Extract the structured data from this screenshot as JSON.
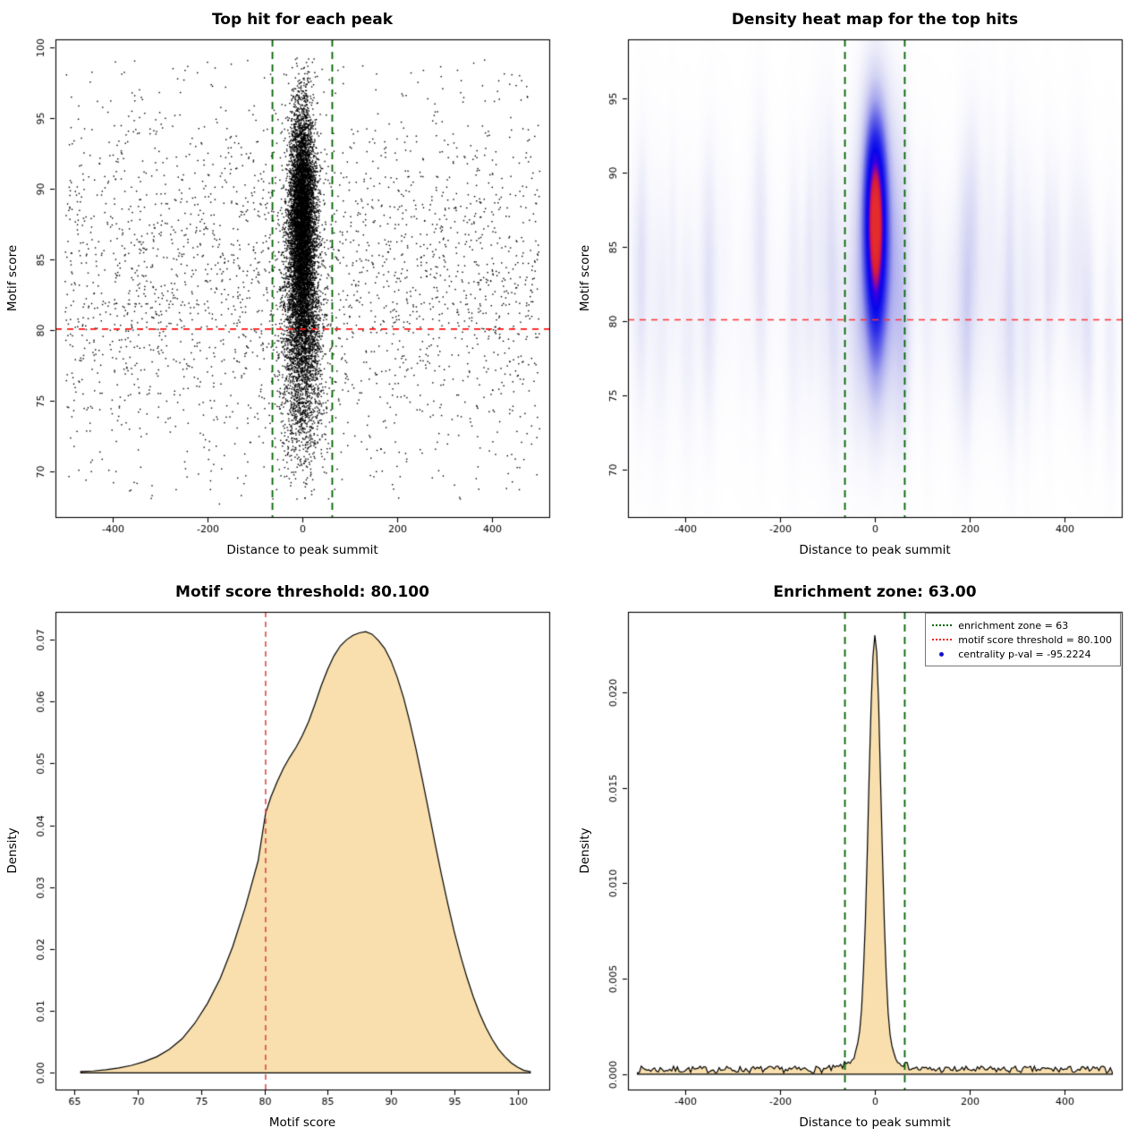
{
  "page": {
    "background": "#ffffff"
  },
  "chart_data": [
    {
      "type": "scatter",
      "title": "Top hit for each peak",
      "xlabel": "Distance to peak summit",
      "ylabel": "Motif score",
      "xlim": [
        -520,
        520
      ],
      "ylim": [
        66.8,
        100.6
      ],
      "xticks": [
        -400,
        -200,
        0,
        200,
        400
      ],
      "xtick_labels": [
        "-400",
        "-200",
        "0",
        "200",
        "400"
      ],
      "yticks": [
        70,
        75,
        80,
        85,
        90,
        95,
        100
      ],
      "ytick_labels": [
        "70",
        "75",
        "80",
        "85",
        "90",
        "95",
        "100"
      ],
      "point_color": "#000000",
      "ref_lines": [
        {
          "orient": "h",
          "at": 80.1,
          "color": "#ff1111",
          "dash": [
            7,
            6
          ],
          "width": 1.6,
          "meaning": "motif score threshold = 80.100"
        },
        {
          "orient": "v",
          "at": -63,
          "color": "#006400",
          "dash": [
            8,
            6
          ],
          "width": 1.8,
          "meaning": "enrichment zone lower bound = -63"
        },
        {
          "orient": "v",
          "at": 63,
          "color": "#006400",
          "dash": [
            8,
            6
          ],
          "width": 1.8,
          "meaning": "enrichment zone upper bound = 63"
        }
      ],
      "model": {
        "seed": 11,
        "groups": [
          {
            "n": 5200,
            "x": [
              "n",
              0,
              13
            ],
            "y": [
              "n",
              88.5,
              3.8
            ],
            "clip": [
              -80,
              80,
              70,
              99.3
            ]
          },
          {
            "n": 2600,
            "x": [
              "n",
              0,
              18
            ],
            "y": [
              "n",
              84,
              4.5
            ],
            "clip": [
              -90,
              90,
              69,
              99
            ]
          },
          {
            "n": 1400,
            "x": [
              "n",
              0,
              22
            ],
            "y": [
              "n",
              79,
              3.2
            ],
            "clip": [
              -100,
              100,
              68.5,
              97
            ]
          },
          {
            "n": 350,
            "x": [
              "n",
              0,
              26
            ],
            "y": [
              "n",
              74,
              2.5
            ],
            "clip": [
              -110,
              110,
              67.5,
              90
            ]
          },
          {
            "n": 1250,
            "x": [
              "u",
              -500,
              500
            ],
            "y": [
              "n",
              81,
              5.2
            ],
            "clip": [
              -500,
              500,
              67.3,
              99
            ]
          },
          {
            "n": 950,
            "x": [
              "u",
              -500,
              500
            ],
            "y": [
              "n",
              88,
              5
            ],
            "clip": [
              -500,
              500,
              67.3,
              99.2
            ]
          },
          {
            "n": 420,
            "x": [
              "u",
              -500,
              500
            ],
            "y": [
              "u",
              68,
              99
            ],
            "clip": [
              -500,
              500,
              67.3,
              99.3
            ]
          }
        ]
      }
    },
    {
      "type": "heatmap",
      "title": "Density heat map for the top hits",
      "xlabel": "Distance to peak summit",
      "ylabel": "Motif score",
      "xlim": [
        -520,
        520
      ],
      "ylim": [
        66.8,
        99.0
      ],
      "xticks": [
        -400,
        -200,
        0,
        200,
        400
      ],
      "xtick_labels": [
        "-400",
        "-200",
        "0",
        "200",
        "400"
      ],
      "yticks": [
        70,
        75,
        80,
        85,
        90,
        95
      ],
      "ytick_labels": [
        "70",
        "75",
        "80",
        "85",
        "90",
        "95"
      ],
      "ref_lines": [
        {
          "orient": "h",
          "at": 80.1,
          "color": "#ff3333",
          "dash": [
            7,
            6
          ],
          "width": 1.5,
          "meaning": "motif score threshold = 80.100"
        },
        {
          "orient": "v",
          "at": -63,
          "color": "#006400",
          "dash": [
            8,
            6
          ],
          "width": 1.8,
          "meaning": "enrichment zone lower bound = -63"
        },
        {
          "orient": "v",
          "at": 63,
          "color": "#006400",
          "dash": [
            8,
            6
          ],
          "width": 1.8,
          "meaning": "enrichment zone upper bound = 63"
        }
      ],
      "colormap": [
        [
          0,
          255,
          255,
          255
        ],
        [
          0.03,
          251,
          251,
          254
        ],
        [
          0.09,
          237,
          237,
          250
        ],
        [
          0.18,
          213,
          213,
          244
        ],
        [
          0.3,
          168,
          168,
          238
        ],
        [
          0.42,
          104,
          104,
          232
        ],
        [
          0.55,
          44,
          44,
          232
        ],
        [
          0.68,
          6,
          6,
          238
        ],
        [
          0.78,
          55,
          0,
          225
        ],
        [
          0.85,
          160,
          10,
          135
        ],
        [
          0.91,
          214,
          30,
          55
        ],
        [
          1,
          229,
          44,
          44
        ]
      ],
      "model": {
        "seed": 99,
        "norm": 1.42,
        "components": [
          {
            "amp": 1.0,
            "x_mean": 0,
            "x_sd": 16,
            "y_mean": 87.4,
            "y_sd": 4.6
          },
          {
            "amp": 0.34,
            "x_mean": 0,
            "x_sd": 30,
            "y_mean": 85.5,
            "y_sd": 7.5
          },
          {
            "amp": 0.16,
            "x_mean": 0,
            "x_sd": 19,
            "y_mean": 79.5,
            "y_sd": 4.2
          },
          {
            "amp": 0.05,
            "x_mean": 0,
            "x_sd": 420,
            "y_mean": 82,
            "y_sd": 6.5
          }
        ],
        "streaks": {
          "count": 90,
          "x_min": -505,
          "x_max": 505,
          "x_sd_min": 6,
          "x_sd_max": 16,
          "y_mean_min": 76,
          "y_mean_max": 88,
          "y_sd_min": 4,
          "y_sd_max": 8,
          "amp_min": 0.02,
          "amp_max": 0.07
        }
      }
    },
    {
      "type": "area",
      "title": "Motif score threshold: 80.100",
      "xlabel": "Motif score",
      "ylabel": "Density",
      "xlim": [
        63.5,
        102.5
      ],
      "ylim": [
        -0.0027,
        0.0745
      ],
      "xticks": [
        65,
        70,
        75,
        80,
        85,
        90,
        95,
        100
      ],
      "xtick_labels": [
        "65",
        "70",
        "75",
        "80",
        "85",
        "90",
        "95",
        "100"
      ],
      "yticks": [
        0,
        0.01,
        0.02,
        0.03,
        0.04,
        0.05,
        0.06,
        0.07
      ],
      "ytick_labels": [
        "0.00",
        "0.01",
        "0.02",
        "0.03",
        "0.04",
        "0.05",
        "0.06",
        "0.07"
      ],
      "fill": "#f8dfad",
      "ref_lines": [
        {
          "orient": "v",
          "at": 80.1,
          "color": "#dd3c3c",
          "dash": [
            6,
            5
          ],
          "width": 1.5,
          "meaning": "motif score threshold = 80.100"
        }
      ],
      "curve_points": [
        [
          65.5,
          0.0002
        ],
        [
          66.5,
          0.0003
        ],
        [
          67.5,
          0.0005
        ],
        [
          68.5,
          0.0008
        ],
        [
          69.5,
          0.0012
        ],
        [
          70.5,
          0.0018
        ],
        [
          71.5,
          0.0026
        ],
        [
          72.5,
          0.0038
        ],
        [
          73.5,
          0.0055
        ],
        [
          74.5,
          0.008
        ],
        [
          75.5,
          0.0112
        ],
        [
          76.5,
          0.0152
        ],
        [
          77.5,
          0.0204
        ],
        [
          78.5,
          0.0268
        ],
        [
          79.5,
          0.0342
        ],
        [
          80.1,
          0.042
        ],
        [
          80.5,
          0.0445
        ],
        [
          81,
          0.047
        ],
        [
          81.5,
          0.0492
        ],
        [
          82,
          0.051
        ],
        [
          82.5,
          0.0526
        ],
        [
          83,
          0.0545
        ],
        [
          83.5,
          0.0568
        ],
        [
          84,
          0.0596
        ],
        [
          84.5,
          0.0626
        ],
        [
          85,
          0.0652
        ],
        [
          85.5,
          0.0674
        ],
        [
          86,
          0.069
        ],
        [
          86.5,
          0.07
        ],
        [
          87,
          0.0707
        ],
        [
          87.5,
          0.0711
        ],
        [
          88,
          0.0713
        ],
        [
          88.5,
          0.0709
        ],
        [
          89,
          0.0699
        ],
        [
          89.5,
          0.0686
        ],
        [
          90,
          0.0666
        ],
        [
          90.5,
          0.0639
        ],
        [
          91,
          0.0606
        ],
        [
          91.5,
          0.0566
        ],
        [
          92,
          0.0521
        ],
        [
          92.5,
          0.0472
        ],
        [
          93,
          0.0421
        ],
        [
          93.5,
          0.0369
        ],
        [
          94,
          0.0319
        ],
        [
          94.5,
          0.0272
        ],
        [
          95,
          0.0228
        ],
        [
          95.5,
          0.0189
        ],
        [
          96,
          0.0154
        ],
        [
          96.5,
          0.0123
        ],
        [
          97,
          0.0096
        ],
        [
          97.5,
          0.0073
        ],
        [
          98,
          0.0054
        ],
        [
          98.5,
          0.0038
        ],
        [
          99,
          0.0026
        ],
        [
          99.5,
          0.0016
        ],
        [
          100,
          0.0009
        ],
        [
          100.5,
          0.0004
        ],
        [
          101,
          0.0002
        ]
      ]
    },
    {
      "type": "area",
      "title": "Enrichment zone: 63.00",
      "xlabel": "Distance to peak summit",
      "ylabel": "Density",
      "xlim": [
        -520,
        520
      ],
      "ylim": [
        -0.0008,
        0.0242
      ],
      "xticks": [
        -400,
        -200,
        0,
        200,
        400
      ],
      "xtick_labels": [
        "-400",
        "-200",
        "0",
        "200",
        "400"
      ],
      "yticks": [
        0,
        0.005,
        0.01,
        0.015,
        0.02
      ],
      "ytick_labels": [
        "0.000",
        "0.005",
        "0.010",
        "0.015",
        "0.020"
      ],
      "fill": "#f8dfad",
      "ref_lines": [
        {
          "orient": "v",
          "at": -63,
          "color": "#006400",
          "dash": [
            8,
            6
          ],
          "width": 1.8,
          "meaning": "enrichment zone lower bound = -63"
        },
        {
          "orient": "v",
          "at": 63,
          "color": "#006400",
          "dash": [
            8,
            6
          ],
          "width": 1.8,
          "meaning": "enrichment zone upper bound = 63"
        }
      ],
      "model": {
        "seed": 7,
        "range": [
          -500,
          500
        ],
        "step": 4,
        "baseline": 0.00025,
        "noise": 0.00018,
        "peak": {
          "amp": 0.0213,
          "sd": 13
        },
        "shoulder": {
          "amp": 0.0014,
          "sd": 34
        }
      },
      "legend": {
        "items": [
          {
            "label": "enrichment zone = 63",
            "color": "#006400",
            "style": "dotted-line"
          },
          {
            "label": "motif score threshold = 80.100",
            "color": "#ee2222",
            "style": "dotted-line"
          },
          {
            "label": "centrality p-val = -95.2224",
            "color": "#1414cc",
            "style": "dot"
          }
        ]
      }
    }
  ]
}
